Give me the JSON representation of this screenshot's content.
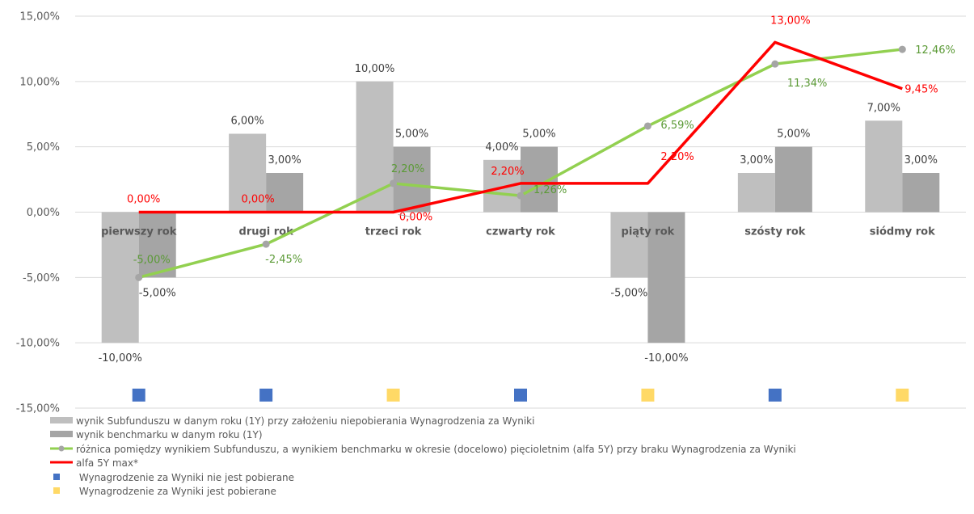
{
  "chart_data": {
    "type": "bar",
    "categories": [
      "pierwszy rok",
      "drugi rok",
      "trzeci rok",
      "czwarty rok",
      "piąty rok",
      "szósty rok",
      "siódmy rok"
    ],
    "y_ticks": [
      "15,00%",
      "10,00%",
      "5,00%",
      "0,00%",
      "-5,00%",
      "-10,00%",
      "-15,00%"
    ],
    "ylim": [
      -15,
      15
    ],
    "grid": true,
    "legend_position": "bottom",
    "series": [
      {
        "name": "wynik Subfunduszu w danym roku (1Y) przy założeniu niepobierania Wynagrodzenia za Wyniki",
        "kind": "bar",
        "color": "#bfbfbf",
        "values": [
          -10,
          6,
          10,
          4,
          -5,
          3,
          7
        ],
        "labels": [
          "-10,00%",
          "6,00%",
          "10,00%",
          "4,00%",
          "-5,00%",
          "3,00%",
          "7,00%"
        ]
      },
      {
        "name": "wynik benchmarku w danym roku (1Y)",
        "kind": "bar",
        "color": "#a5a5a5",
        "values": [
          -5,
          3,
          5,
          5,
          -10,
          5,
          3
        ],
        "labels": [
          "-5,00%",
          "3,00%",
          "5,00%",
          "5,00%",
          "-10,00%",
          "5,00%",
          "3,00%"
        ]
      },
      {
        "name": "różnica pomiędzy wynikiem Subfunduszu, a wynikiem benchmarku w okresie (docelowo) pięcioletnim (alfa 5Y) przy braku Wynagrodzenia za Wyniki",
        "kind": "line",
        "color": "#92d050",
        "values": [
          -5,
          -2.45,
          2.2,
          1.26,
          6.59,
          11.34,
          12.46
        ],
        "labels": [
          "-5,00%",
          "-2,45%",
          "2,20%",
          "1,26%",
          "6,59%",
          "11,34%",
          "12,46%"
        ]
      },
      {
        "name": "alfa 5Y max*",
        "kind": "line",
        "color": "#ff0000",
        "values": [
          0,
          0,
          0,
          2.2,
          2.2,
          13,
          9.45
        ],
        "labels": [
          "0,00%",
          "0,00%",
          "0,00%",
          "2,20%",
          "2,20%",
          "13,00%",
          "9,45%"
        ]
      }
    ],
    "markers": {
      "y_value": -14,
      "colors": [
        "#4472c4",
        "#4472c4",
        "#ffd966",
        "#4472c4",
        "#ffd966",
        "#4472c4",
        "#ffd966"
      ]
    },
    "legend_extra": [
      {
        "name": "Wynagrodzenie za Wyniki nie jest pobierane",
        "color": "#4472c4"
      },
      {
        "name": "Wynagrodzenie za Wyniki jest pobierane",
        "color": "#ffd966"
      }
    ]
  }
}
